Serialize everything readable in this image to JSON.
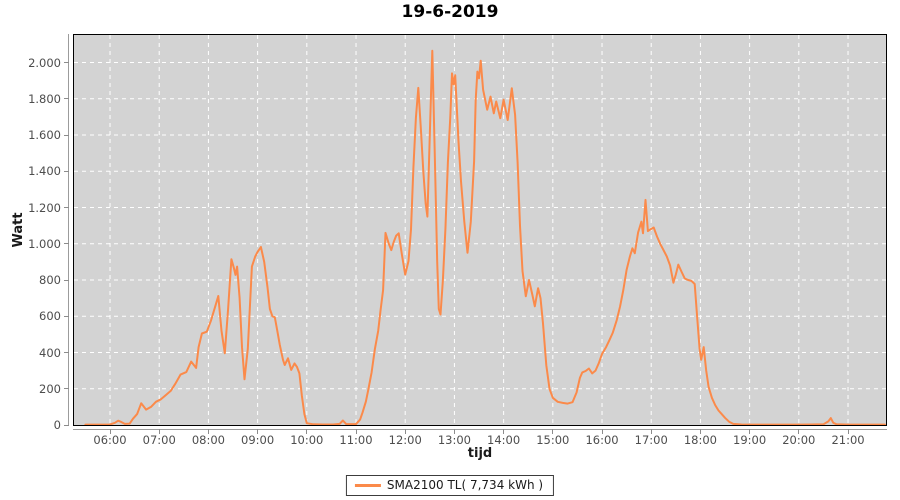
{
  "chart_data": {
    "type": "line",
    "title": "19-6-2019",
    "xlabel": "tijd",
    "ylabel": "Watt",
    "grid": true,
    "legend_position": "bottom-center",
    "x_domain_hours": [
      5.268,
      21.772
    ],
    "ylim": [
      0,
      2152
    ],
    "x_tick_labels": [
      "06:00",
      "07:00",
      "08:00",
      "09:00",
      "10:00",
      "11:00",
      "12:00",
      "13:00",
      "14:00",
      "15:00",
      "16:00",
      "17:00",
      "18:00",
      "19:00",
      "20:00",
      "21:00"
    ],
    "y_tick_labels": [
      "0",
      "200",
      "400",
      "600",
      "800",
      "1.000",
      "1.200",
      "1.400",
      "1.600",
      "1.800",
      "2.000"
    ],
    "y_tick_values": [
      0,
      200,
      400,
      600,
      800,
      1000,
      1200,
      1400,
      1600,
      1800,
      2000
    ],
    "colors": {
      "series": "#fb8a4a",
      "plot_background": "#d3d3d3",
      "gridline": "#ffffff",
      "plot_border": "#000000",
      "tick_label": "#4d4d4d"
    },
    "series": [
      {
        "label": "SMA2100 TL( 7,734 kWh )",
        "name": "SMA2100 TL",
        "total_kwh": "7,734 kWh",
        "color": "#fb8a4a",
        "points": [
          [
            "05:30",
            2
          ],
          [
            "05:40",
            2
          ],
          [
            "05:50",
            2
          ],
          [
            "06:00",
            3
          ],
          [
            "06:06",
            12
          ],
          [
            "06:10",
            24
          ],
          [
            "06:14",
            16
          ],
          [
            "06:18",
            6
          ],
          [
            "06:24",
            8
          ],
          [
            "06:28",
            35
          ],
          [
            "06:33",
            60
          ],
          [
            "06:38",
            120
          ],
          [
            "06:44",
            85
          ],
          [
            "06:50",
            100
          ],
          [
            "06:56",
            128
          ],
          [
            "07:02",
            142
          ],
          [
            "07:08",
            165
          ],
          [
            "07:14",
            188
          ],
          [
            "07:20",
            230
          ],
          [
            "07:26",
            278
          ],
          [
            "07:33",
            292
          ],
          [
            "07:39",
            350
          ],
          [
            "07:45",
            315
          ],
          [
            "07:48",
            430
          ],
          [
            "07:52",
            505
          ],
          [
            "07:58",
            515
          ],
          [
            "08:03",
            575
          ],
          [
            "08:08",
            650
          ],
          [
            "08:12",
            712
          ],
          [
            "08:16",
            520
          ],
          [
            "08:20",
            396
          ],
          [
            "08:24",
            640
          ],
          [
            "08:28",
            915
          ],
          [
            "08:31",
            868
          ],
          [
            "08:33",
            828
          ],
          [
            "08:35",
            874
          ],
          [
            "08:38",
            700
          ],
          [
            "08:41",
            430
          ],
          [
            "08:44",
            252
          ],
          [
            "08:48",
            420
          ],
          [
            "08:53",
            874
          ],
          [
            "08:57",
            930
          ],
          [
            "09:00",
            955
          ],
          [
            "09:04",
            982
          ],
          [
            "09:08",
            900
          ],
          [
            "09:12",
            760
          ],
          [
            "09:15",
            640
          ],
          [
            "09:18",
            600
          ],
          [
            "09:21",
            595
          ],
          [
            "09:24",
            520
          ],
          [
            "09:27",
            442
          ],
          [
            "09:31",
            360
          ],
          [
            "09:33",
            331
          ],
          [
            "09:37",
            368
          ],
          [
            "09:41",
            304
          ],
          [
            "09:45",
            340
          ],
          [
            "09:48",
            320
          ],
          [
            "09:51",
            285
          ],
          [
            "09:54",
            160
          ],
          [
            "09:57",
            60
          ],
          [
            "10:00",
            10
          ],
          [
            "10:08",
            4
          ],
          [
            "10:20",
            3
          ],
          [
            "10:32",
            3
          ],
          [
            "10:40",
            6
          ],
          [
            "10:44",
            25
          ],
          [
            "10:48",
            5
          ],
          [
            "11:00",
            5
          ],
          [
            "11:05",
            30
          ],
          [
            "11:08",
            70
          ],
          [
            "11:12",
            130
          ],
          [
            "11:15",
            195
          ],
          [
            "11:19",
            290
          ],
          [
            "11:23",
            420
          ],
          [
            "11:27",
            520
          ],
          [
            "11:30",
            635
          ],
          [
            "11:33",
            745
          ],
          [
            "11:36",
            1060
          ],
          [
            "11:40",
            1000
          ],
          [
            "11:43",
            965
          ],
          [
            "11:46",
            1010
          ],
          [
            "11:49",
            1045
          ],
          [
            "11:52",
            1058
          ],
          [
            "11:56",
            940
          ],
          [
            "12:00",
            830
          ],
          [
            "12:04",
            905
          ],
          [
            "12:07",
            1080
          ],
          [
            "12:10",
            1420
          ],
          [
            "12:13",
            1695
          ],
          [
            "12:16",
            1860
          ],
          [
            "12:19",
            1640
          ],
          [
            "12:22",
            1400
          ],
          [
            "12:25",
            1220
          ],
          [
            "12:27",
            1150
          ],
          [
            "12:30",
            1600
          ],
          [
            "12:33",
            2065
          ],
          [
            "12:36",
            1510
          ],
          [
            "12:39",
            900
          ],
          [
            "12:41",
            640
          ],
          [
            "12:43",
            610
          ],
          [
            "12:46",
            800
          ],
          [
            "12:49",
            1080
          ],
          [
            "12:52",
            1450
          ],
          [
            "12:55",
            1700
          ],
          [
            "12:57",
            1940
          ],
          [
            "12:59",
            1880
          ],
          [
            "13:01",
            1930
          ],
          [
            "13:05",
            1565
          ],
          [
            "13:08",
            1345
          ],
          [
            "13:12",
            1122
          ],
          [
            "13:16",
            950
          ],
          [
            "13:20",
            1122
          ],
          [
            "13:24",
            1455
          ],
          [
            "13:26",
            1795
          ],
          [
            "13:28",
            1950
          ],
          [
            "13:30",
            1913
          ],
          [
            "13:32",
            2010
          ],
          [
            "13:35",
            1850
          ],
          [
            "13:40",
            1740
          ],
          [
            "13:44",
            1812
          ],
          [
            "13:48",
            1720
          ],
          [
            "13:51",
            1785
          ],
          [
            "13:56",
            1693
          ],
          [
            "14:00",
            1795
          ],
          [
            "14:05",
            1683
          ],
          [
            "14:10",
            1858
          ],
          [
            "14:14",
            1711
          ],
          [
            "14:17",
            1450
          ],
          [
            "14:20",
            1100
          ],
          [
            "14:23",
            850
          ],
          [
            "14:27",
            710
          ],
          [
            "14:31",
            800
          ],
          [
            "14:35",
            720
          ],
          [
            "14:38",
            655
          ],
          [
            "14:42",
            755
          ],
          [
            "14:45",
            700
          ],
          [
            "14:48",
            560
          ],
          [
            "14:52",
            330
          ],
          [
            "14:56",
            200
          ],
          [
            "15:00",
            150
          ],
          [
            "15:06",
            128
          ],
          [
            "15:12",
            122
          ],
          [
            "15:18",
            118
          ],
          [
            "15:24",
            126
          ],
          [
            "15:29",
            180
          ],
          [
            "15:33",
            260
          ],
          [
            "15:36",
            290
          ],
          [
            "15:40",
            298
          ],
          [
            "15:44",
            312
          ],
          [
            "15:48",
            285
          ],
          [
            "15:52",
            300
          ],
          [
            "15:56",
            340
          ],
          [
            "16:00",
            392
          ],
          [
            "16:05",
            430
          ],
          [
            "16:09",
            468
          ],
          [
            "16:13",
            508
          ],
          [
            "16:18",
            580
          ],
          [
            "16:22",
            655
          ],
          [
            "16:26",
            745
          ],
          [
            "16:30",
            856
          ],
          [
            "16:34",
            930
          ],
          [
            "16:37",
            975
          ],
          [
            "16:40",
            948
          ],
          [
            "16:44",
            1062
          ],
          [
            "16:48",
            1122
          ],
          [
            "16:50",
            1058
          ],
          [
            "16:53",
            1242
          ],
          [
            "16:56",
            1070
          ],
          [
            "17:00",
            1082
          ],
          [
            "17:03",
            1090
          ],
          [
            "17:07",
            1040
          ],
          [
            "17:11",
            1000
          ],
          [
            "17:15",
            965
          ],
          [
            "17:19",
            930
          ],
          [
            "17:23",
            880
          ],
          [
            "17:27",
            785
          ],
          [
            "17:30",
            830
          ],
          [
            "17:33",
            885
          ],
          [
            "17:37",
            845
          ],
          [
            "17:41",
            808
          ],
          [
            "17:45",
            800
          ],
          [
            "17:49",
            795
          ],
          [
            "17:53",
            778
          ],
          [
            "17:56",
            600
          ],
          [
            "17:59",
            420
          ],
          [
            "18:01",
            360
          ],
          [
            "18:04",
            430
          ],
          [
            "18:07",
            300
          ],
          [
            "18:10",
            210
          ],
          [
            "18:14",
            150
          ],
          [
            "18:18",
            110
          ],
          [
            "18:22",
            80
          ],
          [
            "18:26",
            60
          ],
          [
            "18:30",
            40
          ],
          [
            "18:35",
            18
          ],
          [
            "18:40",
            6
          ],
          [
            "18:50",
            3
          ],
          [
            "19:00",
            2
          ],
          [
            "19:20",
            2
          ],
          [
            "19:40",
            2
          ],
          [
            "20:00",
            2
          ],
          [
            "20:15",
            3
          ],
          [
            "20:30",
            4
          ],
          [
            "20:36",
            20
          ],
          [
            "20:39",
            38
          ],
          [
            "20:42",
            12
          ],
          [
            "20:46",
            4
          ],
          [
            "21:00",
            2
          ],
          [
            "21:15",
            2
          ],
          [
            "21:30",
            2
          ],
          [
            "21:45",
            2
          ]
        ]
      }
    ]
  }
}
